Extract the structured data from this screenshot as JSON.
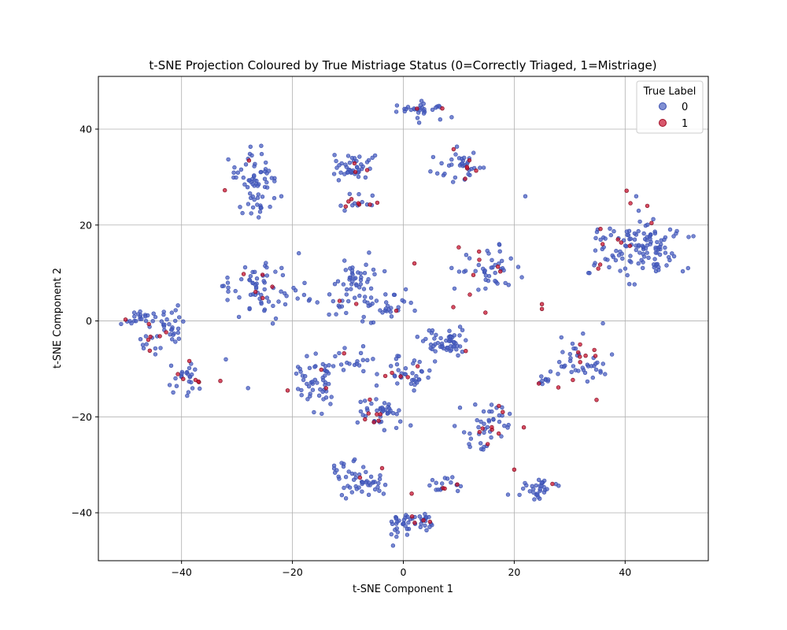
{
  "chart_data": {
    "type": "scatter",
    "title": "t-SNE Projection Coloured by True Mistriage Status (0=Correctly Triaged, 1=Mistriage)",
    "xlabel": "t-SNE Component 1",
    "ylabel": "t-SNE Component 2",
    "xlim": [
      -55,
      55
    ],
    "ylim": [
      -50,
      51
    ],
    "xticks": [
      -40,
      -20,
      0,
      20,
      40
    ],
    "yticks": [
      -40,
      -20,
      0,
      20,
      40
    ],
    "xtick_labels": [
      "−40",
      "−20",
      "0",
      "20",
      "40"
    ],
    "ytick_labels": [
      "−40",
      "−20",
      "0",
      "20",
      "40"
    ],
    "grid": true,
    "legend": {
      "title": "True Label",
      "placement": "top-right",
      "entries": [
        {
          "label": "0",
          "color": "#4a5fc1"
        },
        {
          "label": "1",
          "color": "#c8102e"
        }
      ]
    },
    "colors": {
      "class0": "#4a5fc1",
      "class1": "#c8102e"
    },
    "clusters": [
      {
        "cx": 3.5,
        "cy": 44.0,
        "sx": 2.0,
        "sy": 1.0,
        "n": 32,
        "frac1": 0.06
      },
      {
        "cx": 10.0,
        "cy": 32.0,
        "sx": 2.2,
        "sy": 2.0,
        "n": 40,
        "frac1": 0.12
      },
      {
        "cx": -8.5,
        "cy": 32.0,
        "sx": 2.0,
        "sy": 1.6,
        "n": 45,
        "frac1": 0.06
      },
      {
        "cx": -8.0,
        "cy": 24.5,
        "sx": 1.6,
        "sy": 1.0,
        "n": 18,
        "frac1": 0.15
      },
      {
        "cx": -27.0,
        "cy": 30.0,
        "sx": 2.0,
        "sy": 2.5,
        "n": 55,
        "frac1": 0.08
      },
      {
        "cx": -26.0,
        "cy": 24.0,
        "sx": 1.5,
        "sy": 1.0,
        "n": 14,
        "frac1": 0.0
      },
      {
        "cx": 43.5,
        "cy": 15.0,
        "sx": 3.0,
        "sy": 3.0,
        "n": 110,
        "frac1": 0.05
      },
      {
        "cx": 36.0,
        "cy": 16.0,
        "sx": 1.6,
        "sy": 3.5,
        "n": 25,
        "frac1": 0.2
      },
      {
        "cx": 15.0,
        "cy": 11.0,
        "sx": 3.0,
        "sy": 3.0,
        "n": 50,
        "frac1": 0.14
      },
      {
        "cx": -26.0,
        "cy": 7.0,
        "sx": 3.5,
        "sy": 2.5,
        "n": 70,
        "frac1": 0.06
      },
      {
        "cx": -8.5,
        "cy": 9.0,
        "sx": 1.8,
        "sy": 2.0,
        "n": 40,
        "frac1": 0.06
      },
      {
        "cx": -4.0,
        "cy": 3.0,
        "sx": 2.5,
        "sy": 1.5,
        "n": 35,
        "frac1": 0.08
      },
      {
        "cx": -12.0,
        "cy": 3.5,
        "sx": 1.5,
        "sy": 1.0,
        "n": 12,
        "frac1": 0.08
      },
      {
        "cx": -47.5,
        "cy": 0.5,
        "sx": 1.4,
        "sy": 1.3,
        "n": 25,
        "frac1": 0.08
      },
      {
        "cx": -41.5,
        "cy": -1.5,
        "sx": 1.3,
        "sy": 1.8,
        "n": 28,
        "frac1": 0.12
      },
      {
        "cx": -46.0,
        "cy": -5.0,
        "sx": 1.2,
        "sy": 1.0,
        "n": 12,
        "frac1": 0.2
      },
      {
        "cx": -39.0,
        "cy": -12.0,
        "sx": 2.0,
        "sy": 1.8,
        "n": 30,
        "frac1": 0.2
      },
      {
        "cx": -15.5,
        "cy": -13.5,
        "sx": 2.0,
        "sy": 3.0,
        "n": 55,
        "frac1": 0.07
      },
      {
        "cx": -9.0,
        "cy": -8.0,
        "sx": 1.8,
        "sy": 1.2,
        "n": 18,
        "frac1": 0.1
      },
      {
        "cx": 0.5,
        "cy": -11.0,
        "sx": 2.2,
        "sy": 1.8,
        "n": 40,
        "frac1": 0.12
      },
      {
        "cx": 7.5,
        "cy": -4.5,
        "sx": 2.2,
        "sy": 1.7,
        "n": 55,
        "frac1": 0.04
      },
      {
        "cx": -4.5,
        "cy": -19.0,
        "sx": 2.2,
        "sy": 1.8,
        "n": 45,
        "frac1": 0.12
      },
      {
        "cx": 15.5,
        "cy": -21.5,
        "sx": 2.5,
        "sy": 1.8,
        "n": 42,
        "frac1": 0.12
      },
      {
        "cx": 13.5,
        "cy": -26.0,
        "sx": 1.2,
        "sy": 1.0,
        "n": 8,
        "frac1": 0.0
      },
      {
        "cx": 31.5,
        "cy": -7.5,
        "sx": 1.8,
        "sy": 2.5,
        "n": 30,
        "frac1": 0.2
      },
      {
        "cx": 35.0,
        "cy": -9.5,
        "sx": 1.2,
        "sy": 1.4,
        "n": 18,
        "frac1": 0.0
      },
      {
        "cx": 25.5,
        "cy": -12.0,
        "sx": 1.0,
        "sy": 0.8,
        "n": 10,
        "frac1": 0.2
      },
      {
        "cx": -11.0,
        "cy": -31.0,
        "sx": 1.4,
        "sy": 1.4,
        "n": 14,
        "frac1": 0.1
      },
      {
        "cx": -7.0,
        "cy": -34.0,
        "sx": 2.2,
        "sy": 1.8,
        "n": 40,
        "frac1": 0.08
      },
      {
        "cx": 7.5,
        "cy": -34.0,
        "sx": 1.4,
        "sy": 1.2,
        "n": 18,
        "frac1": 0.15
      },
      {
        "cx": 24.0,
        "cy": -35.0,
        "sx": 1.8,
        "sy": 1.3,
        "n": 32,
        "frac1": 0.15
      },
      {
        "cx": -0.5,
        "cy": -42.5,
        "sx": 1.2,
        "sy": 1.5,
        "n": 28,
        "frac1": 0.05
      },
      {
        "cx": 4.0,
        "cy": -41.5,
        "sx": 1.3,
        "sy": 1.2,
        "n": 22,
        "frac1": 0.15
      }
    ],
    "outliers": [
      {
        "x": -28.0,
        "y": -14.0,
        "label": 0
      },
      {
        "x": -32.0,
        "y": -8.0,
        "label": 0
      },
      {
        "x": 25.0,
        "y": 3.5,
        "label": 1
      },
      {
        "x": 25.0,
        "y": 2.5,
        "label": 1
      },
      {
        "x": -22.0,
        "y": 26.0,
        "label": 0
      },
      {
        "x": -23.0,
        "y": 0.5,
        "label": 0
      },
      {
        "x": 2.0,
        "y": 12.0,
        "label": 1
      },
      {
        "x": 22.0,
        "y": 26.0,
        "label": 0
      },
      {
        "x": 42.0,
        "y": 26.0,
        "label": 0
      },
      {
        "x": 44.0,
        "y": 24.0,
        "label": 1
      },
      {
        "x": 20.0,
        "y": -31.0,
        "label": 1
      },
      {
        "x": 12.0,
        "y": 5.5,
        "label": 1
      },
      {
        "x": -33.0,
        "y": -12.5,
        "label": 1
      },
      {
        "x": 1.5,
        "y": -36.0,
        "label": 1
      },
      {
        "x": 36.0,
        "y": -0.5,
        "label": 0
      }
    ],
    "seed": 12345
  }
}
